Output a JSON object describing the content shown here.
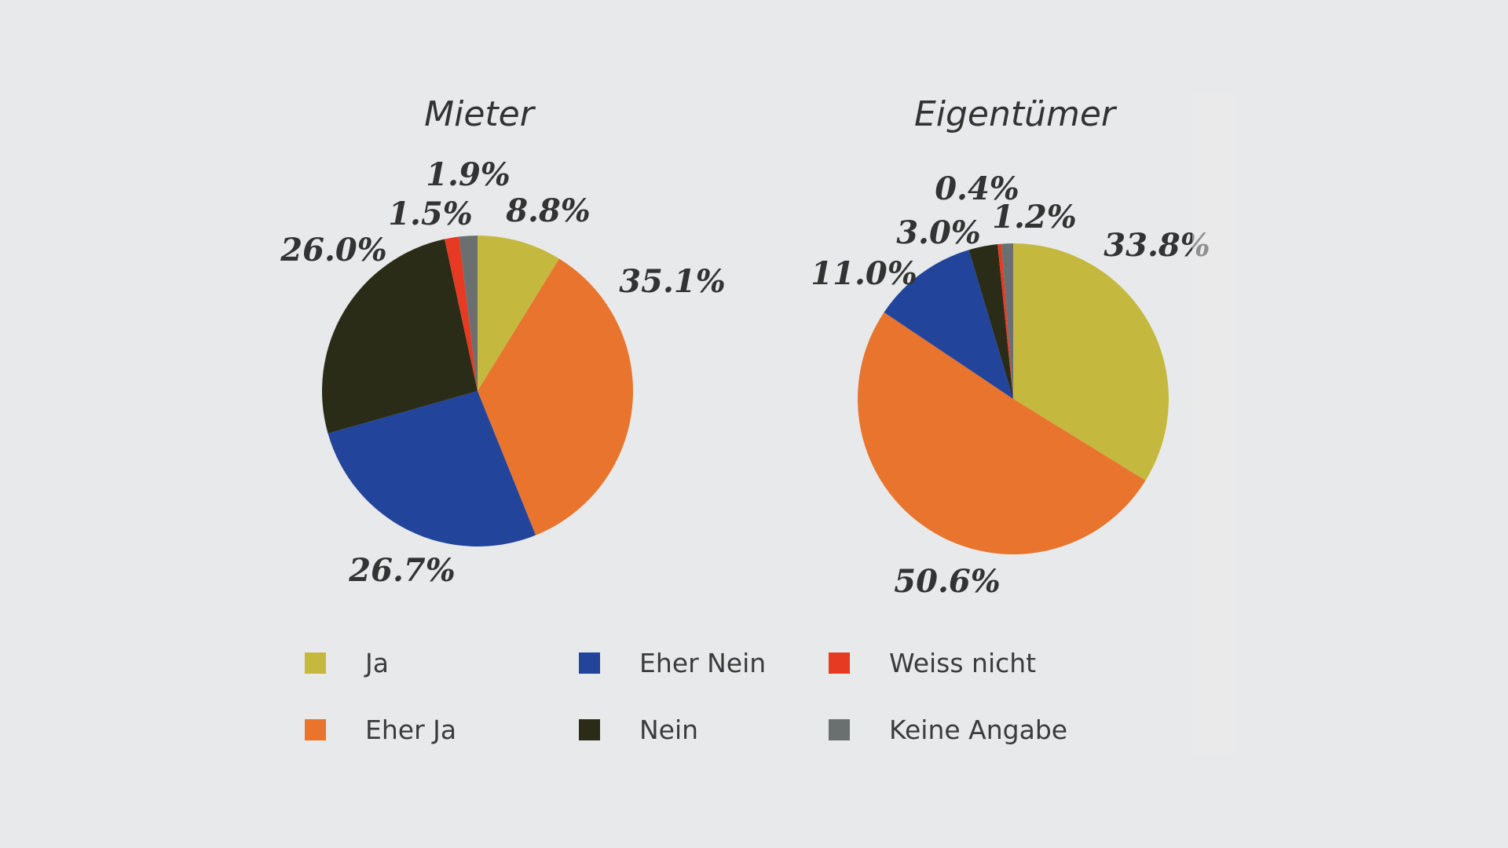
{
  "colors": {
    "Ja": "#c5b83e",
    "Eher Ja": "#e8742d",
    "Eher Nein": "#22449b",
    "Nein": "#2b2c17",
    "Weiss nicht": "#e63a22",
    "Keine Angabe": "#6a7070",
    "background": "#e8e9ea",
    "text": "#333333"
  },
  "chart_data": [
    {
      "type": "pie",
      "title": "Mieter",
      "slices": [
        {
          "label": "Ja",
          "value": 8.8,
          "display": "8.8%"
        },
        {
          "label": "Eher Ja",
          "value": 35.1,
          "display": "35.1%"
        },
        {
          "label": "Eher Nein",
          "value": 26.7,
          "display": "26.7%"
        },
        {
          "label": "Nein",
          "value": 26.0,
          "display": "26.0%"
        },
        {
          "label": "Weiss nicht",
          "value": 1.5,
          "display": "1.5%"
        },
        {
          "label": "Keine Angabe",
          "value": 1.9,
          "display": "1.9%"
        }
      ]
    },
    {
      "type": "pie",
      "title": "Eigentümer",
      "slices": [
        {
          "label": "Ja",
          "value": 33.8,
          "display": "33.8%"
        },
        {
          "label": "Eher Ja",
          "value": 50.6,
          "display": "50.6%"
        },
        {
          "label": "Eher Nein",
          "value": 11.0,
          "display": "11.0%"
        },
        {
          "label": "Nein",
          "value": 3.0,
          "display": "3.0%"
        },
        {
          "label": "Weiss nicht",
          "value": 0.4,
          "display": "0.4%"
        },
        {
          "label": "Keine Angabe",
          "value": 1.2,
          "display": "1.2%"
        }
      ]
    }
  ],
  "legend": {
    "items": [
      {
        "label": "Ja"
      },
      {
        "label": "Eher Ja"
      },
      {
        "label": "Eher Nein"
      },
      {
        "label": "Nein"
      },
      {
        "label": "Weiss nicht"
      },
      {
        "label": "Keine Angabe"
      }
    ]
  }
}
